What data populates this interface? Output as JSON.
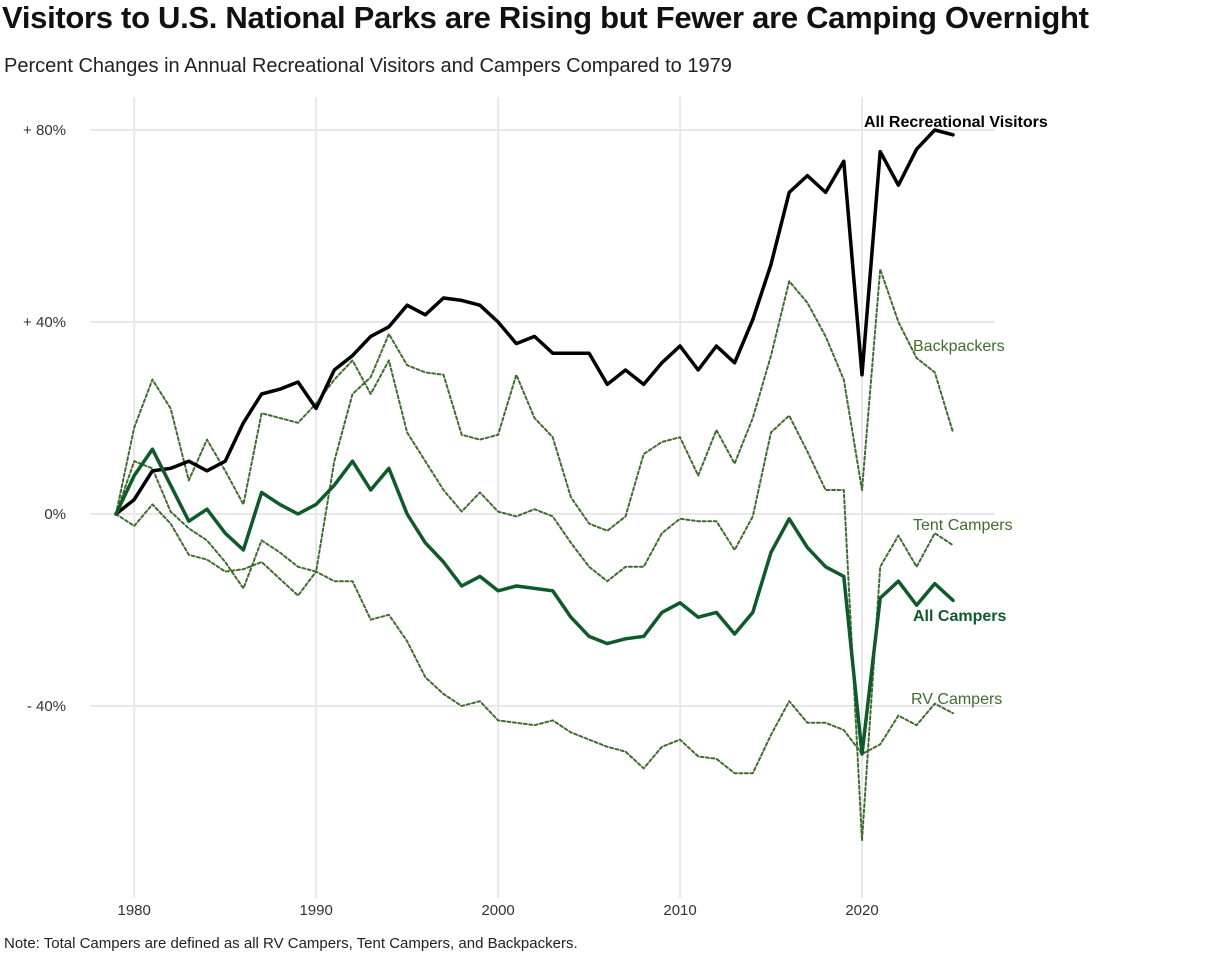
{
  "title": "Visitors to U.S. National Parks are Rising but Fewer are Camping Overnight",
  "subtitle": "Percent Changes in Annual Recreational Visitors and Campers Compared to 1979",
  "note": "Note: Total Campers are defined as all RV Campers, Tent Campers, and Backpackers.",
  "colors": {
    "visitors": "#000000",
    "campers": "#0d5a2a",
    "sub": "#3f6d2f",
    "grid": "#e8e8e8"
  },
  "chart_data": {
    "type": "line",
    "xlim": [
      1978,
      2025
    ],
    "ylim": [
      -78,
      87
    ],
    "x_ticks": [
      1980,
      1990,
      2000,
      2010,
      2020
    ],
    "y_ticks": [
      80,
      40,
      0,
      -40
    ],
    "y_tick_labels": [
      "+ 80%",
      "+ 40%",
      "0%",
      "- 40%"
    ],
    "x": [
      1979,
      1980,
      1981,
      1982,
      1983,
      1984,
      1985,
      1986,
      1987,
      1988,
      1989,
      1990,
      1991,
      1992,
      1993,
      1994,
      1995,
      1996,
      1997,
      1998,
      1999,
      2000,
      2001,
      2002,
      2003,
      2004,
      2005,
      2006,
      2007,
      2008,
      2009,
      2010,
      2011,
      2012,
      2013,
      2014,
      2015,
      2016,
      2017,
      2018,
      2019,
      2020,
      2021,
      2022,
      2023,
      2024,
      2025
    ],
    "series": [
      {
        "name": "All Recreational Visitors",
        "style": "visitors",
        "values": [
          0,
          3,
          9,
          9.5,
          11,
          9,
          11,
          19,
          25,
          26,
          27.5,
          22,
          30,
          33,
          37,
          39,
          43.5,
          41.5,
          45,
          44.5,
          43.5,
          40,
          35.5,
          37,
          33.5,
          33.5,
          33.5,
          27,
          30,
          27,
          31.5,
          35,
          30,
          35,
          31.5,
          40.5,
          52,
          67,
          70.5,
          67,
          73.5,
          29,
          75.5,
          68.5,
          76,
          80,
          79
        ]
      },
      {
        "name": "All Campers",
        "style": "campers",
        "values": [
          0,
          8,
          13.5,
          6,
          -1.5,
          1,
          -4,
          -7.5,
          4.5,
          2,
          0,
          2,
          6,
          11,
          5,
          9.5,
          0,
          -6,
          -10,
          -15,
          -13,
          -16,
          -15,
          -15.5,
          -16,
          -21.5,
          -25.5,
          -27,
          -26,
          -25.5,
          -20.5,
          -18.5,
          -21.5,
          -20.5,
          -25,
          -20.5,
          -8,
          -1,
          -7,
          -11,
          -13,
          -50,
          -17.5,
          -14,
          -19,
          -14.5,
          -18
        ]
      },
      {
        "name": "Backpackers",
        "style": "sub",
        "values": [
          0,
          18,
          28,
          22,
          7,
          15.5,
          9,
          2,
          21,
          20,
          19,
          23,
          28,
          32,
          25,
          32,
          17,
          11,
          5,
          0.5,
          4.5,
          0.5,
          -0.5,
          1,
          -0.5,
          -6,
          -11,
          -14,
          -11,
          -11,
          -4,
          -1,
          -1.5,
          -1.5,
          -7.5,
          -0.5,
          17,
          20.5,
          13,
          5,
          5,
          -68,
          -11,
          -4.5,
          -11,
          -4,
          -6.5
        ]
      },
      {
        "name": "Tent Campers",
        "style": "sub",
        "values": [
          0,
          11,
          9.5,
          0.5,
          -3,
          -5.5,
          -10,
          -15.5,
          -5.5,
          -8,
          -11,
          -12,
          11,
          25,
          28.5,
          37.5,
          31,
          29.5,
          29,
          16.5,
          15.5,
          16.5,
          29,
          20,
          16,
          3.5,
          -2,
          -3.5,
          -0.5,
          12.5,
          15,
          16,
          8,
          17.5,
          10.5,
          20,
          33,
          48.5,
          44,
          37,
          28,
          5,
          51,
          40,
          32.5,
          29.5,
          17
        ]
      },
      {
        "name": "RV Campers",
        "style": "sub",
        "values": [
          0,
          -2.5,
          2,
          -2,
          -8.5,
          -9.5,
          -12,
          -11.5,
          -10,
          -13.5,
          -17,
          -12,
          -14,
          -14,
          -22,
          -21,
          -26.5,
          -34,
          -37.5,
          -40,
          -39,
          -43,
          -43.5,
          -44,
          -43,
          -45.5,
          -47,
          -48.5,
          -49.5,
          -53,
          -48.5,
          -47,
          -50.5,
          -51,
          -54,
          -54,
          -46,
          -39,
          -43.5,
          -43.5,
          -45,
          -50,
          -48,
          -42,
          -44,
          -39.5,
          -41.5
        ]
      }
    ],
    "labels": {
      "visitors": "All Recreational Visitors",
      "backpackers": "Backpackers",
      "tent": "Tent Campers",
      "campers": "All Campers",
      "rv": "RV Campers"
    }
  }
}
